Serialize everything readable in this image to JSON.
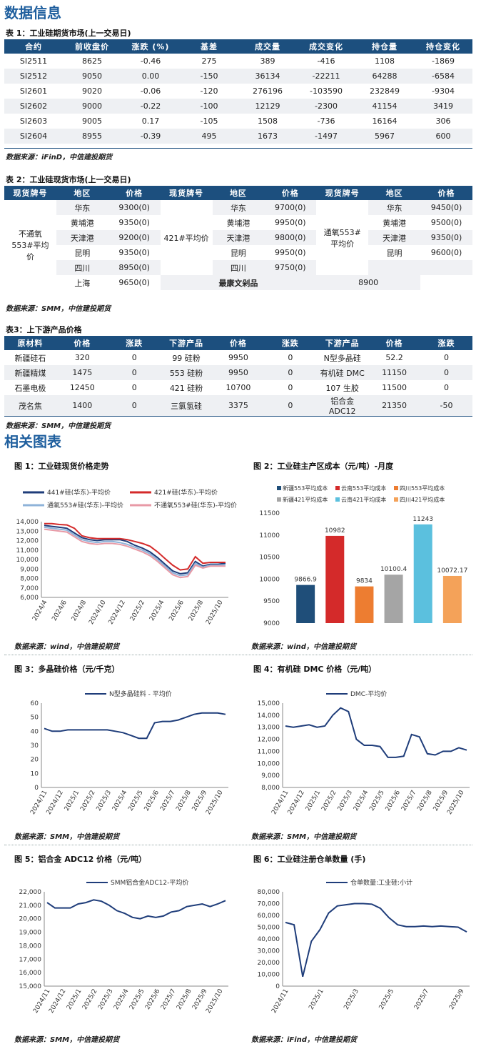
{
  "section1": "数据信息",
  "t1": {
    "caption": "表 1：工业硅期货市场(上一交易日)",
    "headers": [
      "合约",
      "前收盘价",
      "涨跌 (%)",
      "基差",
      "成交量",
      "成交变化",
      "持仓量",
      "持仓变化"
    ],
    "rows": [
      [
        "SI2511",
        "8625",
        "-0.46",
        "275",
        "389",
        "-416",
        "1108",
        "-1869"
      ],
      [
        "SI2512",
        "9050",
        "0.00",
        "-150",
        "36134",
        "-22211",
        "64288",
        "-6584"
      ],
      [
        "SI2601",
        "9020",
        "-0.06",
        "-120",
        "276196",
        "-103590",
        "232849",
        "-9304"
      ],
      [
        "SI2602",
        "9000",
        "-0.22",
        "-100",
        "12129",
        "-2300",
        "41154",
        "3419"
      ],
      [
        "SI2603",
        "9005",
        "0.17",
        "-105",
        "1508",
        "-736",
        "16164",
        "306"
      ],
      [
        "SI2604",
        "8955",
        "-0.39",
        "495",
        "1673",
        "-1497",
        "5967",
        "600"
      ]
    ],
    "source": "数据来源：iFinD，中信建投期货"
  },
  "t2": {
    "caption": "表 2：工业硅现货市场(上一交易日)",
    "headers": [
      "现货牌号",
      "地区",
      "价格",
      "现货牌号",
      "地区",
      "价格",
      "现货牌号",
      "地区",
      "价格"
    ],
    "g1": "不通氧553#平均价",
    "g2": "421#平均价",
    "g3": "通氧553#平均价",
    "c1": [
      [
        "华东",
        "9300(0)"
      ],
      [
        "黄埔港",
        "9350(0)"
      ],
      [
        "天津港",
        "9200(0)"
      ],
      [
        "昆明",
        "9350(0)"
      ],
      [
        "四川",
        "8950(0)"
      ],
      [
        "上海",
        "9650(0)"
      ]
    ],
    "c2": [
      [
        "华东",
        "9700(0)"
      ],
      [
        "黄埔港",
        "9950(0)"
      ],
      [
        "天津港",
        "9800(0)"
      ],
      [
        "昆明",
        "9950(0)"
      ],
      [
        "四川",
        "9750(0)"
      ]
    ],
    "c3": [
      [
        "华东",
        "9450(0)"
      ],
      [
        "黄埔港",
        "9500(0)"
      ],
      [
        "天津港",
        "9350(0)"
      ],
      [
        "昆明",
        "9600(0)"
      ]
    ],
    "last_label": "最康文剁品",
    "last_price": "8900",
    "source": "数据来源：SMM，中信建投期货"
  },
  "t3": {
    "caption": "表3：上下游产品价格",
    "headers": [
      "原材料",
      "价格",
      "涨跌",
      "下游产品",
      "价格",
      "涨跌",
      "下游产品",
      "价格",
      "涨跌"
    ],
    "rows": [
      [
        "新疆硅石",
        "320",
        "0",
        "99 硅粉",
        "9950",
        "0",
        "N型多晶硅",
        "52.2",
        "0"
      ],
      [
        "新疆精煤",
        "1475",
        "0",
        "553 硅粉",
        "9950",
        "0",
        "有机硅 DMC",
        "11150",
        "0"
      ],
      [
        "石墨电极",
        "12450",
        "0",
        "421 硅粉",
        "10700",
        "0",
        "107 生胶",
        "11500",
        "0"
      ],
      [
        "茂名焦",
        "1400",
        "0",
        "三氯氢硅",
        "3375",
        "0",
        "铝合金 ADC12",
        "21350",
        "-50"
      ]
    ],
    "source": "数据来源：SMM，中信建投期货"
  },
  "section2": "相关图表",
  "fig1": {
    "title": "图 1：工业硅现货价格走势",
    "source": "数据来源：wind，中信建投期货"
  },
  "fig2": {
    "title": "图 2：工业硅主产区成本（元/吨）-月度",
    "source": "数据来源：wind，中信建投期货"
  },
  "fig3": {
    "title": "图 3：多晶硅价格（元/千克）",
    "source": "数据来源：SMM，中信建投期货"
  },
  "fig4": {
    "title": "图 4：有机硅 DMC 价格（元/吨）",
    "source": "数据来源：SMM，中信建投期货"
  },
  "fig5": {
    "title": "图 5：铝合金 ADC12 价格（元/吨）",
    "source": "数据来源：SMM，中信建投期货"
  },
  "fig6": {
    "title": "图 6：工业硅注册仓单数量 (手)",
    "source": "数据来源：iFind，中信建投期货"
  },
  "chart_data": [
    {
      "id": "fig1",
      "type": "line",
      "ylim": [
        6000,
        14000
      ],
      "yticks": [
        "14,000",
        "13,000",
        "12,000",
        "11,000",
        "10,000",
        "9,000",
        "8,000",
        "7,000",
        "6,000"
      ],
      "xticks": [
        "2024/4",
        "2024/6",
        "2024/8",
        "2024/10",
        "2024/12",
        "2025/2",
        "2025/4",
        "2025/6",
        "2025/8",
        "2025/10"
      ],
      "series": [
        {
          "name": "441#硅(华东)-平均价",
          "color": "#1f3d7a",
          "values": [
            13600,
            13500,
            13400,
            13300,
            12800,
            12300,
            12100,
            12000,
            12100,
            12100,
            12100,
            11900,
            11500,
            11200,
            10800,
            10200,
            9500,
            8800,
            8500,
            8600,
            9800,
            9300,
            9500,
            9500,
            9600
          ]
        },
        {
          "name": "421#硅(华东)-平均价",
          "color": "#d42a2a",
          "values": [
            13800,
            13800,
            13700,
            13650,
            13300,
            12500,
            12300,
            12200,
            12200,
            12200,
            12200,
            12100,
            11900,
            11700,
            11400,
            10800,
            10100,
            9400,
            8900,
            9000,
            10300,
            9600,
            9700,
            9700,
            9700
          ]
        },
        {
          "name": "通氧553#硅(华东)-平均价",
          "color": "#8fb3d9",
          "values": [
            13400,
            13300,
            13200,
            13100,
            12600,
            12100,
            11900,
            11800,
            11900,
            11900,
            11800,
            11600,
            11300,
            11000,
            10600,
            10000,
            9300,
            8600,
            8300,
            8400,
            9600,
            9200,
            9400,
            9400,
            9450
          ]
        },
        {
          "name": "不通氧553#硅(华东)-平均价",
          "color": "#e89aa6",
          "values": [
            13200,
            13100,
            13000,
            12900,
            12400,
            11900,
            11700,
            11600,
            11700,
            11700,
            11600,
            11400,
            11100,
            10800,
            10400,
            9800,
            9100,
            8400,
            8100,
            8200,
            9400,
            9100,
            9300,
            9300,
            9300
          ]
        }
      ]
    },
    {
      "id": "fig2",
      "type": "bar",
      "ylim": [
        9000,
        11500
      ],
      "yticks": [
        "11500",
        "11000",
        "10500",
        "10000",
        "9500",
        "9000"
      ],
      "legend": [
        [
          "新疆553平均成本",
          "#1f4e79"
        ],
        [
          "云南553平均成本",
          "#d42a2a"
        ],
        [
          "四川553平均成本",
          "#ed7d31"
        ],
        [
          "新疆421平均成本",
          "#a5a5a5"
        ],
        [
          "云南421平均成本",
          "#5bc0de"
        ],
        [
          "四川421平均成本",
          "#f4a259"
        ]
      ],
      "values": [
        9866.9,
        10982,
        9834,
        10100.4,
        11243,
        10072.17
      ],
      "labels": [
        "9866.9",
        "10982",
        "9834",
        "10100.4",
        "11243",
        "10072.17"
      ]
    },
    {
      "id": "fig3",
      "type": "line",
      "ylim": [
        0,
        60
      ],
      "yticks": [
        "60",
        "50",
        "40",
        "30",
        "20",
        "10",
        "0"
      ],
      "xticks": [
        "2024/11",
        "2024/12",
        "2025/1",
        "2025/2",
        "2025/3",
        "2025/4",
        "2025/5",
        "2025/6",
        "2025/7",
        "2025/8",
        "2025/9",
        "2025/10"
      ],
      "series": [
        {
          "name": "N型多晶硅料 - 平均价",
          "color": "#1f3d7a",
          "values": [
            42,
            40,
            40,
            41,
            41,
            41,
            41,
            41,
            41,
            40,
            39,
            37,
            35,
            35,
            46,
            47,
            47,
            48,
            50,
            52,
            53,
            53,
            53,
            52
          ]
        }
      ]
    },
    {
      "id": "fig4",
      "type": "line",
      "ylim": [
        8000,
        15000
      ],
      "yticks": [
        "15,000",
        "14,000",
        "13,000",
        "12,000",
        "11,000",
        "10,000",
        "9,000",
        "8,000"
      ],
      "xticks": [
        "2024/11",
        "2024/12",
        "2025/1",
        "2025/2",
        "2025/3",
        "2025/4",
        "2025/5",
        "2025/6",
        "2025/7",
        "2025/8",
        "2025/9",
        "2025/10"
      ],
      "series": [
        {
          "name": "DMC-平均价",
          "color": "#1f3d7a",
          "values": [
            13100,
            13000,
            13100,
            13200,
            13000,
            13100,
            14000,
            14600,
            14300,
            12000,
            11500,
            11500,
            11400,
            10500,
            10500,
            10600,
            12400,
            12200,
            10800,
            10700,
            11000,
            11000,
            11300,
            11100
          ]
        }
      ]
    },
    {
      "id": "fig5",
      "type": "line",
      "ylim": [
        15000,
        22000
      ],
      "yticks": [
        "22,000",
        "21,000",
        "20,000",
        "19,000",
        "18,000",
        "17,000",
        "16,000",
        "15,000"
      ],
      "xticks": [
        "2024/11",
        "2024/12",
        "2025/1",
        "2025/2",
        "2025/3",
        "2025/4",
        "2025/5",
        "2025/6",
        "2025/7",
        "2025/8",
        "2025/9",
        "2025/10"
      ],
      "series": [
        {
          "name": "SMM铝合金ADC12-平均价",
          "color": "#1f3d7a",
          "values": [
            21200,
            20800,
            20800,
            20800,
            21100,
            21200,
            21400,
            21300,
            21000,
            20600,
            20400,
            20100,
            20000,
            20200,
            20100,
            20200,
            20500,
            20600,
            20900,
            21000,
            21100,
            20900,
            21100,
            21350
          ]
        }
      ]
    },
    {
      "id": "fig6",
      "type": "line",
      "ylim": [
        0,
        80000
      ],
      "yticks": [
        "80,000",
        "70,000",
        "60,000",
        "50,000",
        "40,000",
        "30,000",
        "20,000",
        "10,000",
        "0"
      ],
      "xticks": [
        "2024/11",
        "2025/1",
        "2025/3",
        "2025/5",
        "2025/7",
        "2025/9"
      ],
      "series": [
        {
          "name": "仓单数量:工业硅:小计",
          "color": "#1f3d7a",
          "values": [
            54000,
            52000,
            8000,
            38000,
            48000,
            62000,
            68000,
            69000,
            70000,
            70000,
            69500,
            66000,
            58000,
            52000,
            50500,
            50500,
            51000,
            50500,
            51000,
            50500,
            50000,
            46000
          ]
        }
      ]
    }
  ]
}
